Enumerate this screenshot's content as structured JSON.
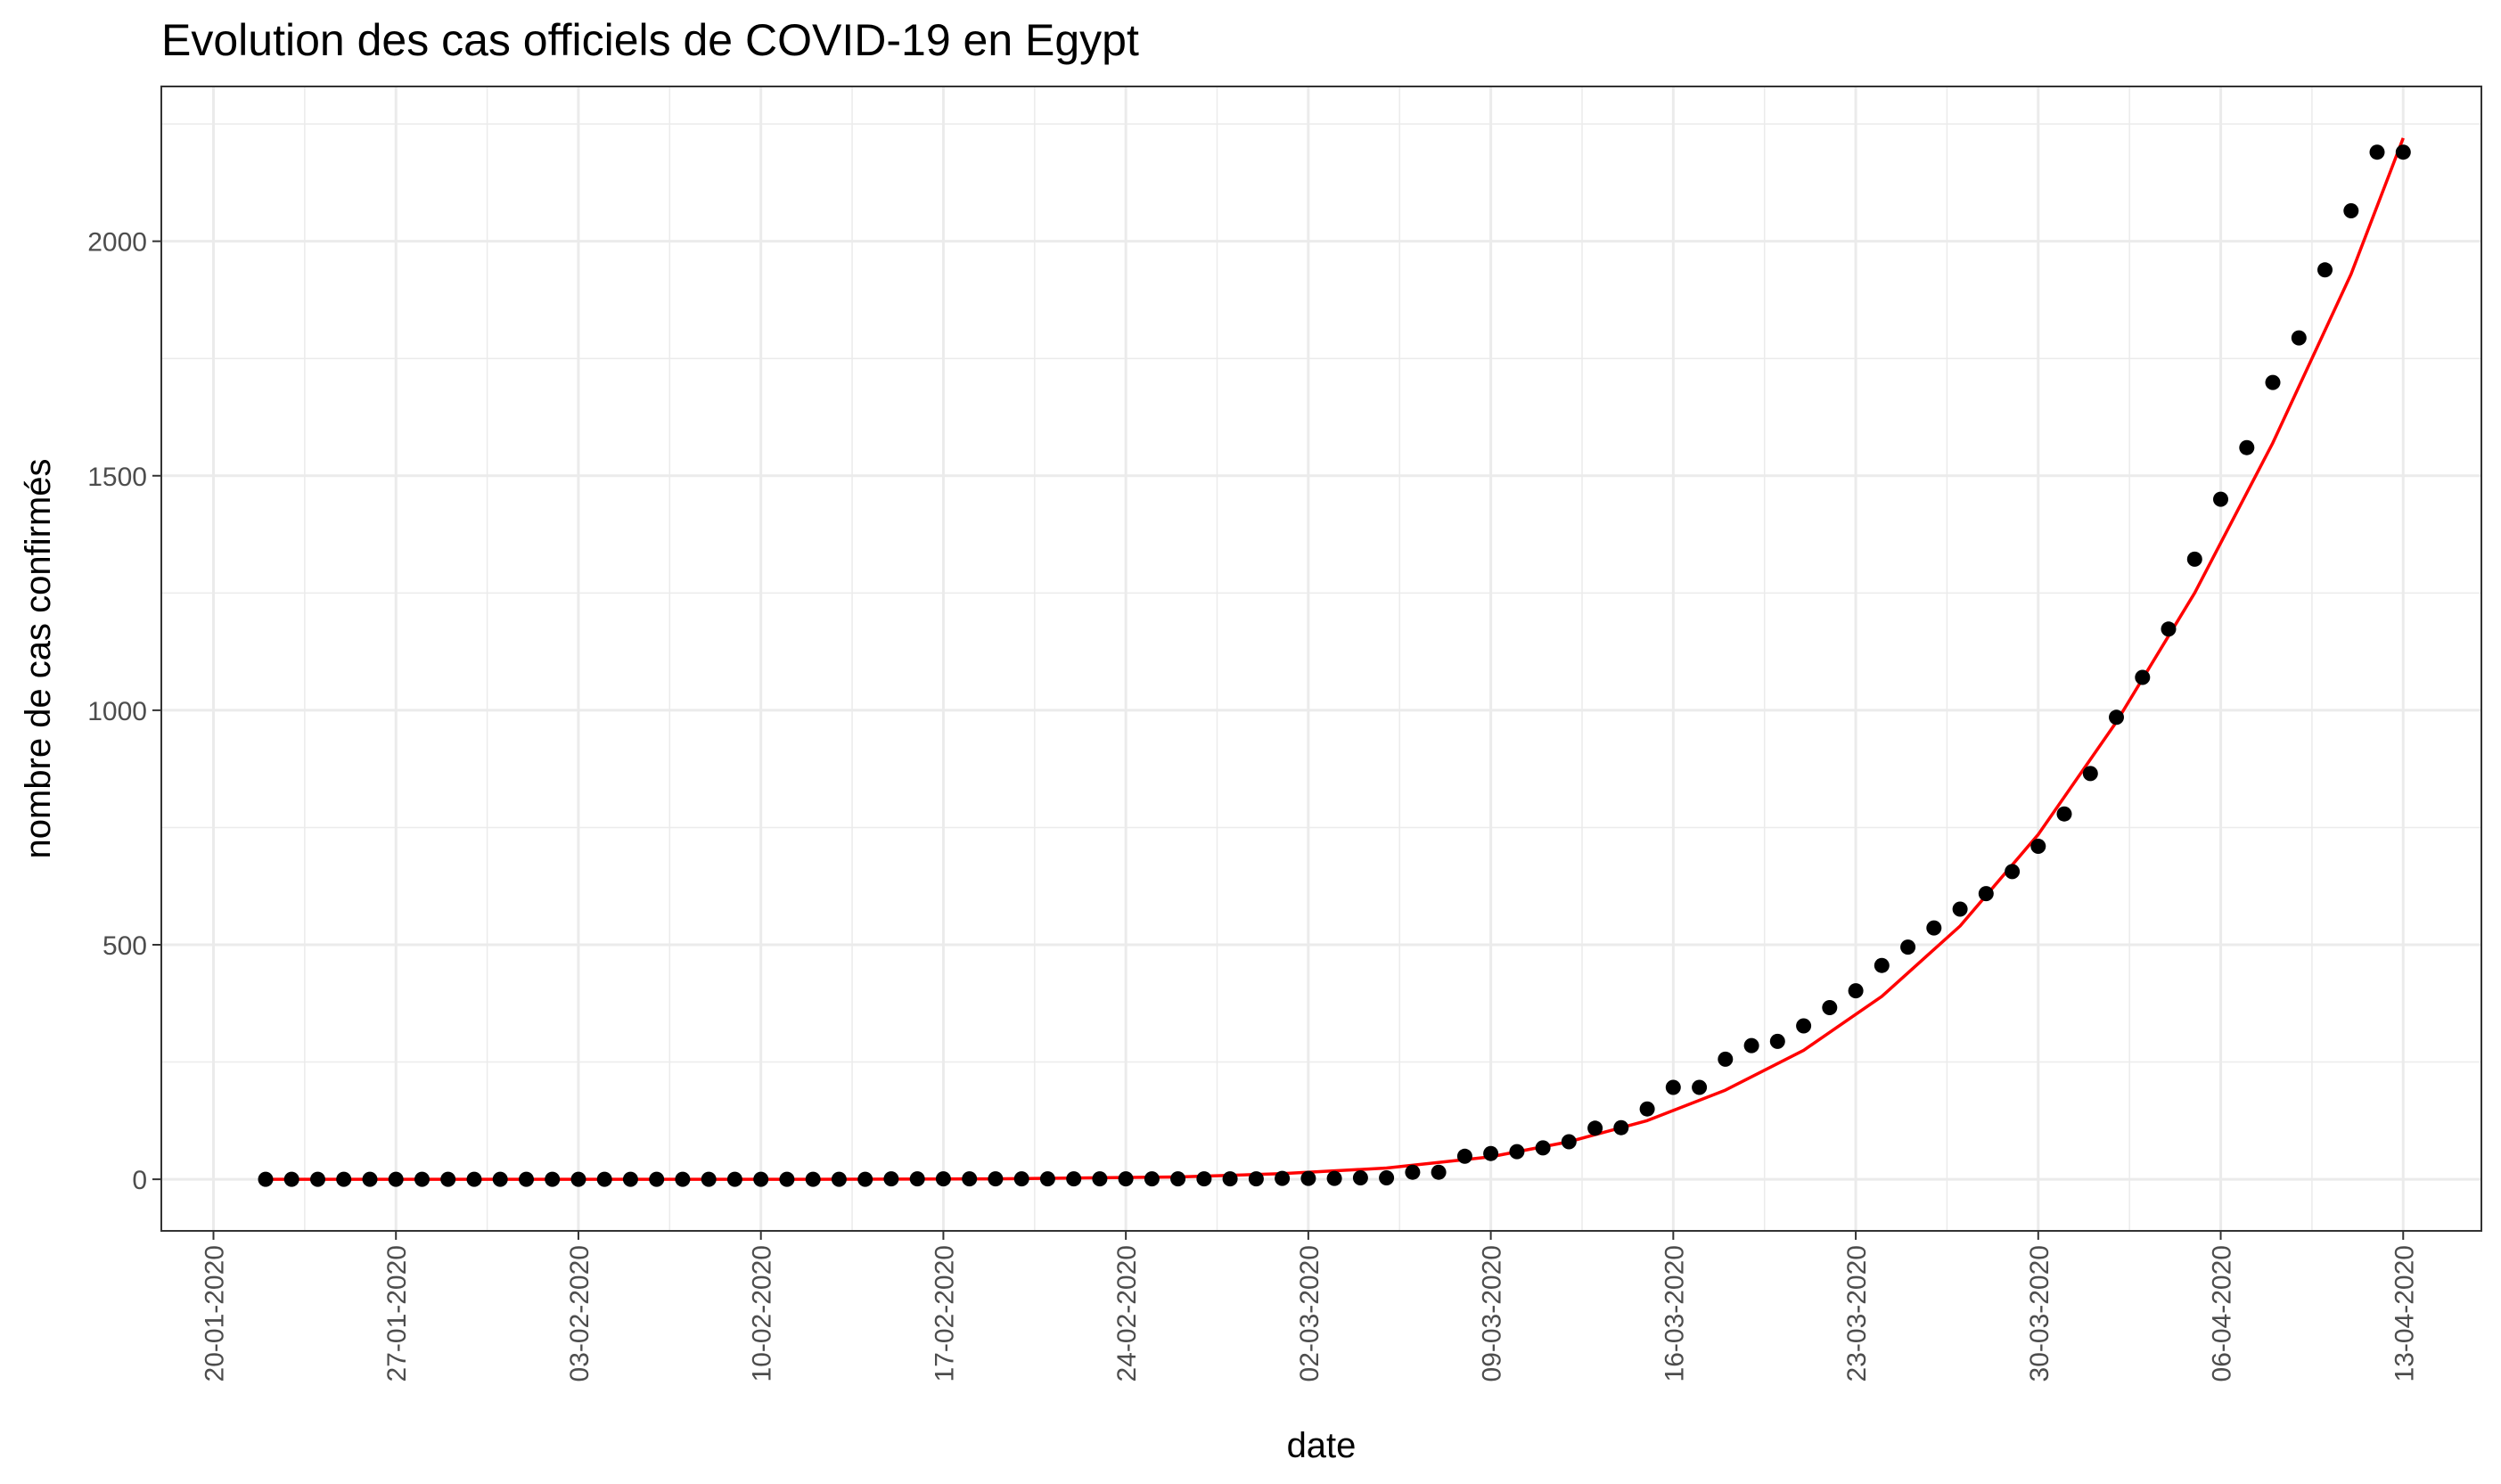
{
  "chart_data": {
    "type": "scatter",
    "title": "Evolution des cas officiels de COVID-19 en Egypt",
    "xlabel": "date",
    "ylabel": "nombre de cas confirmés",
    "x_axis_kind": "date",
    "x_range": [
      "2020-01-18",
      "2020-04-16"
    ],
    "xticks": [
      "2020-01-20",
      "2020-01-27",
      "2020-02-03",
      "2020-02-10",
      "2020-02-17",
      "2020-02-24",
      "2020-03-02",
      "2020-03-09",
      "2020-03-16",
      "2020-03-23",
      "2020-03-30",
      "2020-04-06",
      "2020-04-13"
    ],
    "xtick_labels": [
      "20-01-2020",
      "27-01-2020",
      "03-02-2020",
      "10-02-2020",
      "17-02-2020",
      "24-02-2020",
      "02-03-2020",
      "09-03-2020",
      "16-03-2020",
      "23-03-2020",
      "30-03-2020",
      "06-04-2020",
      "13-04-2020"
    ],
    "xtick_label_rotation": 90,
    "ylim": [
      -110,
      2330
    ],
    "yticks": [
      0,
      500,
      1000,
      1500,
      2000
    ],
    "ytick_labels": [
      "0",
      "500",
      "1000",
      "1500",
      "2000"
    ],
    "grid": true,
    "theme": "bw",
    "series": [
      {
        "kind": "points",
        "color": "#000000",
        "x": [
          "2020-01-22",
          "2020-01-23",
          "2020-01-24",
          "2020-01-25",
          "2020-01-26",
          "2020-01-27",
          "2020-01-28",
          "2020-01-29",
          "2020-01-30",
          "2020-01-31",
          "2020-02-01",
          "2020-02-02",
          "2020-02-03",
          "2020-02-04",
          "2020-02-05",
          "2020-02-06",
          "2020-02-07",
          "2020-02-08",
          "2020-02-09",
          "2020-02-10",
          "2020-02-11",
          "2020-02-12",
          "2020-02-13",
          "2020-02-14",
          "2020-02-15",
          "2020-02-16",
          "2020-02-17",
          "2020-02-18",
          "2020-02-19",
          "2020-02-20",
          "2020-02-21",
          "2020-02-22",
          "2020-02-23",
          "2020-02-24",
          "2020-02-25",
          "2020-02-26",
          "2020-02-27",
          "2020-02-28",
          "2020-02-29",
          "2020-03-01",
          "2020-03-02",
          "2020-03-03",
          "2020-03-04",
          "2020-03-05",
          "2020-03-06",
          "2020-03-07",
          "2020-03-08",
          "2020-03-09",
          "2020-03-10",
          "2020-03-11",
          "2020-03-12",
          "2020-03-13",
          "2020-03-14",
          "2020-03-15",
          "2020-03-16",
          "2020-03-17",
          "2020-03-18",
          "2020-03-19",
          "2020-03-20",
          "2020-03-21",
          "2020-03-22",
          "2020-03-23",
          "2020-03-24",
          "2020-03-25",
          "2020-03-26",
          "2020-03-27",
          "2020-03-28",
          "2020-03-29",
          "2020-03-30",
          "2020-03-31",
          "2020-04-01",
          "2020-04-02",
          "2020-04-03",
          "2020-04-04",
          "2020-04-05",
          "2020-04-06",
          "2020-04-07",
          "2020-04-08",
          "2020-04-09",
          "2020-04-10",
          "2020-04-11",
          "2020-04-12",
          "2020-04-13"
        ],
        "y": [
          0,
          0,
          0,
          0,
          0,
          0,
          0,
          0,
          0,
          0,
          0,
          0,
          0,
          0,
          0,
          0,
          0,
          0,
          0,
          0,
          0,
          0,
          0,
          0,
          1,
          1,
          1,
          1,
          1,
          1,
          1,
          1,
          1,
          1,
          1,
          1,
          1,
          1,
          1,
          2,
          2,
          2,
          3,
          3,
          15,
          15,
          49,
          55,
          59,
          67,
          80,
          109,
          110,
          150,
          196,
          196,
          256,
          285,
          294,
          327,
          366,
          402,
          456,
          495,
          536,
          576,
          609,
          656,
          710,
          779,
          865,
          985,
          1070,
          1173,
          1322,
          1450,
          1560,
          1699,
          1794,
          1939,
          2065,
          2190,
          2190
        ]
      },
      {
        "kind": "fit-curve",
        "color": "#ff0000",
        "x": [
          "2020-01-22",
          "2020-01-29",
          "2020-02-05",
          "2020-02-12",
          "2020-02-19",
          "2020-02-26",
          "2020-03-01",
          "2020-03-05",
          "2020-03-09",
          "2020-03-12",
          "2020-03-15",
          "2020-03-18",
          "2020-03-21",
          "2020-03-24",
          "2020-03-27",
          "2020-03-30",
          "2020-04-02",
          "2020-04-05",
          "2020-04-08",
          "2020-04-11",
          "2020-04-13"
        ],
        "y": [
          0,
          0,
          0,
          0,
          1,
          5,
          12,
          24,
          48,
          80,
          125,
          190,
          275,
          390,
          540,
          735,
          975,
          1250,
          1570,
          1930,
          2220
        ]
      }
    ]
  }
}
